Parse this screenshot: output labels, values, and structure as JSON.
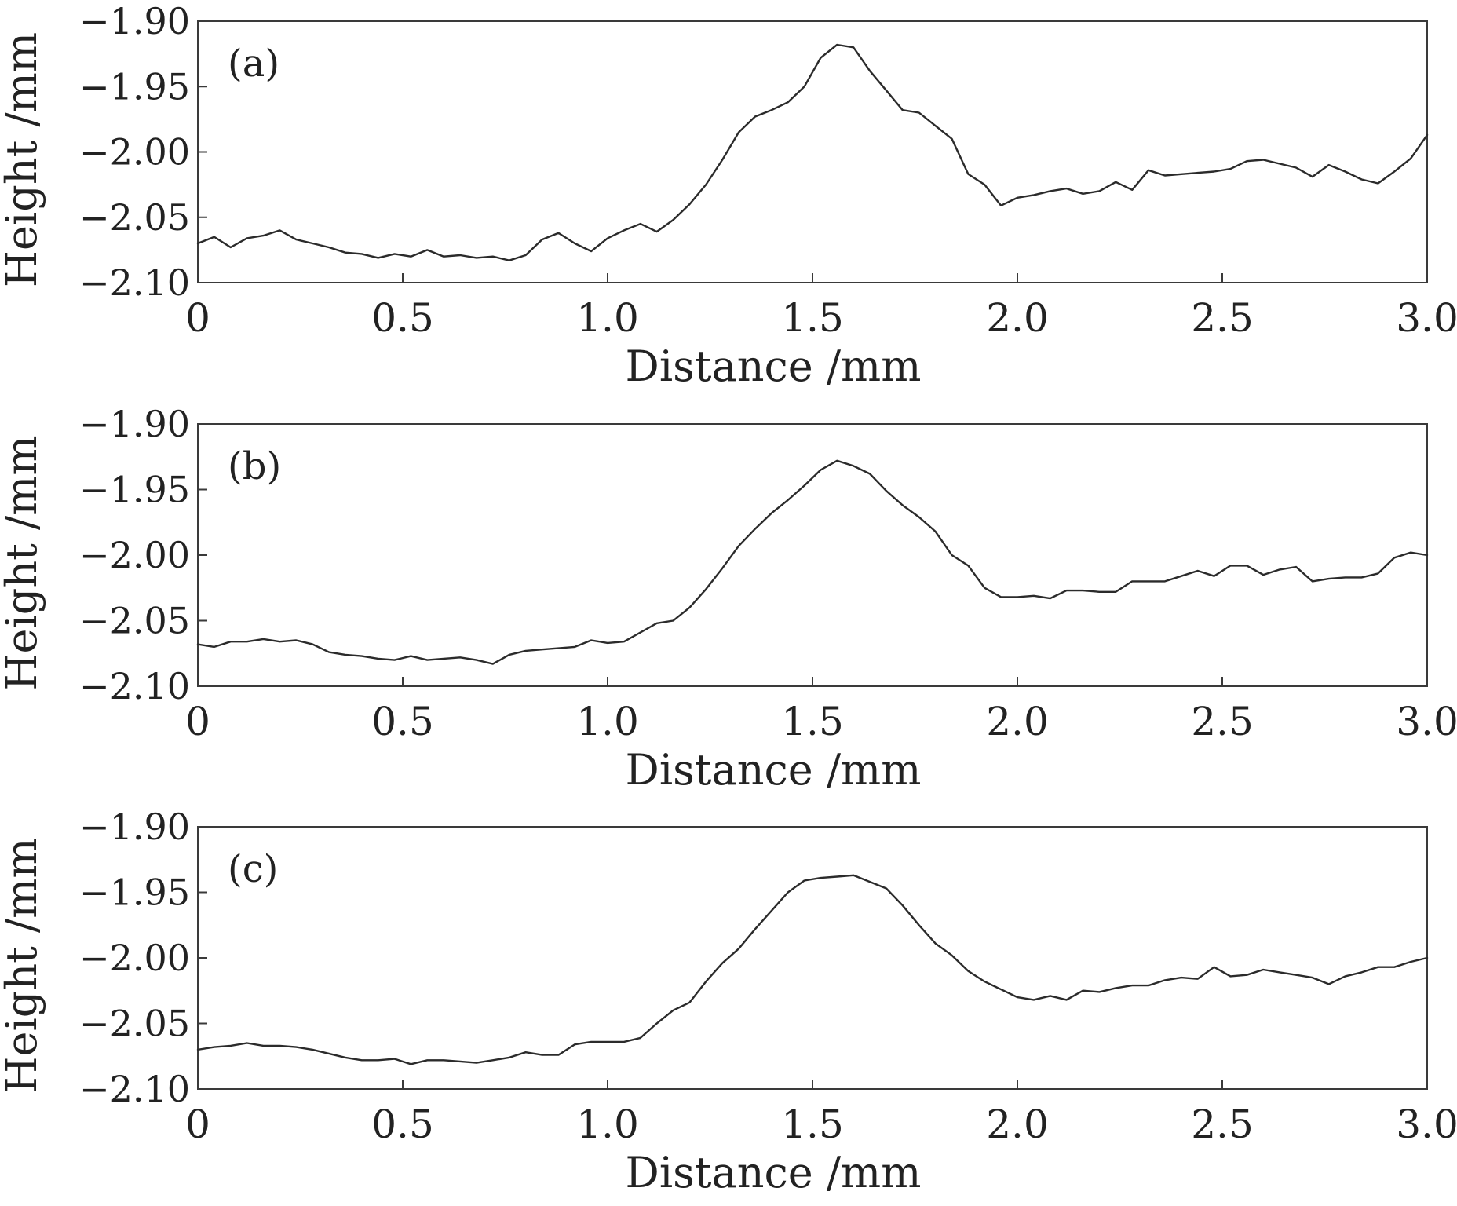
{
  "chart_data": [
    {
      "type": "line",
      "panel_label": "(a)",
      "xlabel": "Distance /mm",
      "ylabel": "Height /mm",
      "xlim": [
        0,
        3.0
      ],
      "ylim": [
        -2.1,
        -1.9
      ],
      "xticks": [
        "0",
        "0.5",
        "1.0",
        "1.5",
        "2.0",
        "2.5",
        "3.0"
      ],
      "yticks": [
        "−1.90",
        "−1.95",
        "−2.00",
        "−2.05",
        "−2.10"
      ],
      "grid": false,
      "x": [
        0,
        0.04,
        0.08,
        0.12,
        0.16,
        0.2,
        0.24,
        0.28,
        0.32,
        0.36,
        0.4,
        0.44,
        0.48,
        0.52,
        0.56,
        0.6,
        0.64,
        0.68,
        0.72,
        0.76,
        0.8,
        0.84,
        0.88,
        0.92,
        0.96,
        1.0,
        1.04,
        1.08,
        1.12,
        1.16,
        1.2,
        1.24,
        1.28,
        1.32,
        1.36,
        1.4,
        1.44,
        1.48,
        1.52,
        1.56,
        1.6,
        1.64,
        1.68,
        1.72,
        1.76,
        1.8,
        1.84,
        1.88,
        1.92,
        1.96,
        2.0,
        2.04,
        2.08,
        2.12,
        2.16,
        2.2,
        2.24,
        2.28,
        2.32,
        2.36,
        2.4,
        2.44,
        2.48,
        2.52,
        2.56,
        2.6,
        2.64,
        2.68,
        2.72,
        2.76,
        2.8,
        2.84,
        2.88,
        2.92,
        2.96,
        3.0
      ],
      "y": [
        -2.07,
        -2.065,
        -2.073,
        -2.066,
        -2.064,
        -2.06,
        -2.067,
        -2.07,
        -2.073,
        -2.077,
        -2.078,
        -2.081,
        -2.078,
        -2.08,
        -2.075,
        -2.08,
        -2.079,
        -2.081,
        -2.08,
        -2.083,
        -2.079,
        -2.067,
        -2.062,
        -2.07,
        -2.076,
        -2.066,
        -2.06,
        -2.055,
        -2.061,
        -2.052,
        -2.04,
        -2.025,
        -2.006,
        -1.985,
        -1.973,
        -1.968,
        -1.962,
        -1.95,
        -1.928,
        -1.918,
        -1.92,
        -1.938,
        -1.953,
        -1.968,
        -1.97,
        -1.98,
        -1.99,
        -2.017,
        -2.025,
        -2.041,
        -2.035,
        -2.033,
        -2.03,
        -2.028,
        -2.032,
        -2.03,
        -2.023,
        -2.029,
        -2.014,
        -2.018,
        -2.017,
        -2.016,
        -2.015,
        -2.013,
        -2.007,
        -2.006,
        -2.009,
        -2.012,
        -2.019,
        -2.01,
        -2.015,
        -2.021,
        -2.024,
        -2.015,
        -2.005,
        -1.987
      ]
    },
    {
      "type": "line",
      "panel_label": "(b)",
      "xlabel": "Distance /mm",
      "ylabel": "Height /mm",
      "xlim": [
        0,
        3.0
      ],
      "ylim": [
        -2.1,
        -1.9
      ],
      "xticks": [
        "0",
        "0.5",
        "1.0",
        "1.5",
        "2.0",
        "2.5",
        "3.0"
      ],
      "yticks": [
        "−1.90",
        "−1.95",
        "−2.00",
        "−2.05",
        "−2.10"
      ],
      "grid": false,
      "x": [
        0,
        0.04,
        0.08,
        0.12,
        0.16,
        0.2,
        0.24,
        0.28,
        0.32,
        0.36,
        0.4,
        0.44,
        0.48,
        0.52,
        0.56,
        0.6,
        0.64,
        0.68,
        0.72,
        0.76,
        0.8,
        0.84,
        0.88,
        0.92,
        0.96,
        1.0,
        1.04,
        1.08,
        1.12,
        1.16,
        1.2,
        1.24,
        1.28,
        1.32,
        1.36,
        1.4,
        1.44,
        1.48,
        1.52,
        1.56,
        1.6,
        1.64,
        1.68,
        1.72,
        1.76,
        1.8,
        1.84,
        1.88,
        1.92,
        1.96,
        2.0,
        2.04,
        2.08,
        2.12,
        2.16,
        2.2,
        2.24,
        2.28,
        2.32,
        2.36,
        2.4,
        2.44,
        2.48,
        2.52,
        2.56,
        2.6,
        2.64,
        2.68,
        2.72,
        2.76,
        2.8,
        2.84,
        2.88,
        2.92,
        2.96,
        3.0
      ],
      "y": [
        -2.068,
        -2.07,
        -2.066,
        -2.066,
        -2.064,
        -2.066,
        -2.065,
        -2.068,
        -2.074,
        -2.076,
        -2.077,
        -2.079,
        -2.08,
        -2.077,
        -2.08,
        -2.079,
        -2.078,
        -2.08,
        -2.083,
        -2.076,
        -2.073,
        -2.072,
        -2.071,
        -2.07,
        -2.065,
        -2.067,
        -2.066,
        -2.059,
        -2.052,
        -2.05,
        -2.04,
        -2.026,
        -2.01,
        -1.993,
        -1.98,
        -1.968,
        -1.958,
        -1.947,
        -1.935,
        -1.928,
        -1.932,
        -1.938,
        -1.951,
        -1.962,
        -1.971,
        -1.982,
        -2.0,
        -2.008,
        -2.025,
        -2.032,
        -2.032,
        -2.031,
        -2.033,
        -2.027,
        -2.027,
        -2.028,
        -2.028,
        -2.02,
        -2.02,
        -2.02,
        -2.016,
        -2.012,
        -2.016,
        -2.008,
        -2.008,
        -2.015,
        -2.011,
        -2.009,
        -2.02,
        -2.018,
        -2.017,
        -2.017,
        -2.014,
        -2.002,
        -1.998,
        -2.0
      ]
    },
    {
      "type": "line",
      "panel_label": "(c)",
      "xlabel": "Distance /mm",
      "ylabel": "Height /mm",
      "xlim": [
        0,
        3.0
      ],
      "ylim": [
        -2.1,
        -1.9
      ],
      "xticks": [
        "0",
        "0.5",
        "1.0",
        "1.5",
        "2.0",
        "2.5",
        "3.0"
      ],
      "yticks": [
        "−1.90",
        "−1.95",
        "−2.00",
        "−2.05",
        "−2.10"
      ],
      "grid": false,
      "x": [
        0,
        0.04,
        0.08,
        0.12,
        0.16,
        0.2,
        0.24,
        0.28,
        0.32,
        0.36,
        0.4,
        0.44,
        0.48,
        0.52,
        0.56,
        0.6,
        0.64,
        0.68,
        0.72,
        0.76,
        0.8,
        0.84,
        0.88,
        0.92,
        0.96,
        1.0,
        1.04,
        1.08,
        1.12,
        1.16,
        1.2,
        1.24,
        1.28,
        1.32,
        1.36,
        1.4,
        1.44,
        1.48,
        1.52,
        1.56,
        1.6,
        1.64,
        1.68,
        1.72,
        1.76,
        1.8,
        1.84,
        1.88,
        1.92,
        1.96,
        2.0,
        2.04,
        2.08,
        2.12,
        2.16,
        2.2,
        2.24,
        2.28,
        2.32,
        2.36,
        2.4,
        2.44,
        2.48,
        2.52,
        2.56,
        2.6,
        2.64,
        2.68,
        2.72,
        2.76,
        2.8,
        2.84,
        2.88,
        2.92,
        2.96,
        3.0
      ],
      "y": [
        -2.07,
        -2.068,
        -2.067,
        -2.065,
        -2.067,
        -2.067,
        -2.068,
        -2.07,
        -2.073,
        -2.076,
        -2.078,
        -2.078,
        -2.077,
        -2.081,
        -2.078,
        -2.078,
        -2.079,
        -2.08,
        -2.078,
        -2.076,
        -2.072,
        -2.074,
        -2.074,
        -2.066,
        -2.064,
        -2.064,
        -2.064,
        -2.061,
        -2.05,
        -2.04,
        -2.034,
        -2.018,
        -2.004,
        -1.993,
        -1.978,
        -1.964,
        -1.95,
        -1.941,
        -1.939,
        -1.938,
        -1.937,
        -1.942,
        -1.947,
        -1.96,
        -1.975,
        -1.989,
        -1.998,
        -2.01,
        -2.018,
        -2.024,
        -2.03,
        -2.032,
        -2.029,
        -2.032,
        -2.025,
        -2.026,
        -2.023,
        -2.021,
        -2.021,
        -2.017,
        -2.015,
        -2.016,
        -2.007,
        -2.014,
        -2.013,
        -2.009,
        -2.011,
        -2.013,
        -2.015,
        -2.02,
        -2.014,
        -2.011,
        -2.007,
        -2.007,
        -2.003,
        -2.0
      ]
    }
  ]
}
